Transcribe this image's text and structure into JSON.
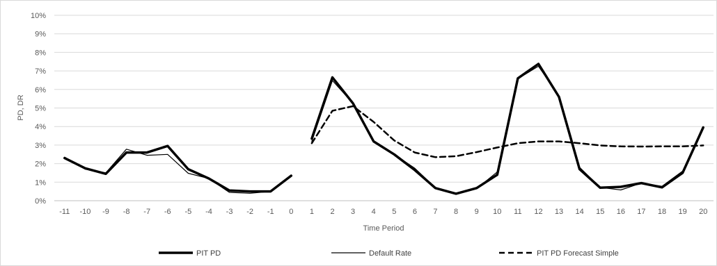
{
  "chart_data": {
    "type": "line",
    "title": "",
    "xlabel": "Time Period",
    "ylabel": "PD, DR",
    "ylim": [
      0,
      0.1
    ],
    "y_ticks": [
      0,
      0.01,
      0.02,
      0.03,
      0.04,
      0.05,
      0.06,
      0.07,
      0.08,
      0.09,
      0.1
    ],
    "y_tick_labels": [
      "0%",
      "1%",
      "2%",
      "3%",
      "4%",
      "5%",
      "6%",
      "7%",
      "8%",
      "9%",
      "10%"
    ],
    "categories": [
      "-11",
      "-10",
      "-9",
      "-8",
      "-7",
      "-6",
      "-5",
      "-4",
      "-3",
      "-2",
      "-1",
      "0",
      "1",
      "2",
      "3",
      "4",
      "5",
      "6",
      "7",
      "8",
      "9",
      "10",
      "11",
      "12",
      "13",
      "14",
      "15",
      "16",
      "17",
      "18",
      "19",
      "20"
    ],
    "grid": true,
    "legend_position": "bottom",
    "series": [
      {
        "name": "PIT PD",
        "style": "thick-solid",
        "color": "#000000",
        "values": [
          0.023,
          0.0175,
          0.0145,
          0.026,
          0.026,
          0.0295,
          0.017,
          0.012,
          0.0055,
          0.005,
          0.005,
          0.0135,
          0.0335,
          0.0665,
          0.0525,
          0.032,
          0.025,
          0.0165,
          0.0068,
          0.0038,
          0.0068,
          0.014,
          0.066,
          0.0738,
          0.056,
          0.017,
          0.007,
          0.0075,
          0.0095,
          0.0072,
          0.015,
          0.0395
        ]
      },
      {
        "name": "Default Rate",
        "style": "thin-solid",
        "color": "#000000",
        "values": [
          0.0235,
          0.017,
          0.015,
          0.0278,
          0.0245,
          0.025,
          0.0148,
          0.012,
          0.0045,
          0.004,
          0.005,
          0.0135,
          0.032,
          0.0648,
          0.0525,
          0.032,
          0.025,
          0.0175,
          0.007,
          0.004,
          0.0065,
          0.0155,
          0.0658,
          0.0725,
          0.0565,
          0.018,
          0.0072,
          0.0058,
          0.0095,
          0.0078,
          0.016,
          0.0395
        ]
      },
      {
        "name": "PIT PD Forecast Simple",
        "style": "dashed",
        "color": "#000000",
        "values": [
          null,
          null,
          null,
          null,
          null,
          null,
          null,
          null,
          null,
          null,
          null,
          null,
          0.031,
          0.0485,
          0.051,
          0.0425,
          0.0325,
          0.026,
          0.0235,
          0.024,
          0.0262,
          0.0287,
          0.031,
          0.032,
          0.032,
          0.031,
          0.0298,
          0.0293,
          0.0292,
          0.0293,
          0.0293,
          0.0298
        ]
      }
    ]
  }
}
